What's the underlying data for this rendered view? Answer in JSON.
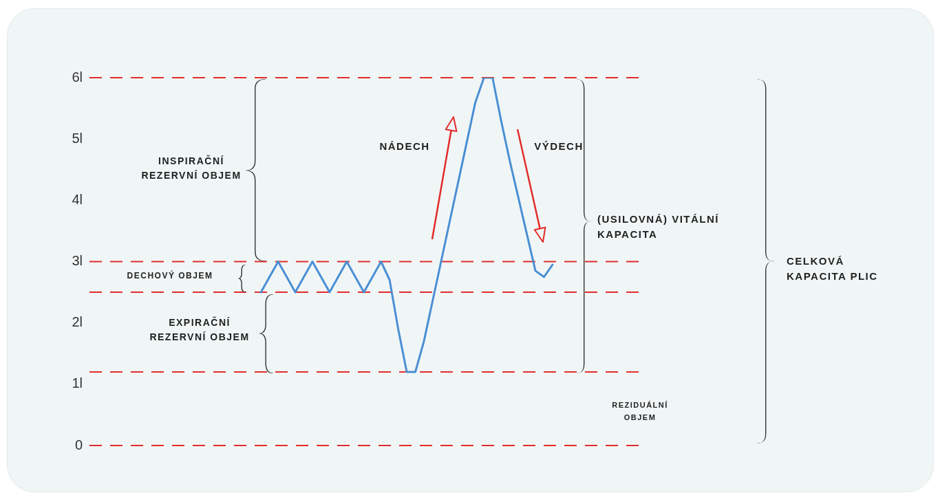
{
  "chart_data": {
    "type": "line",
    "categories": [
      null,
      null,
      null,
      null,
      null,
      null,
      null,
      null,
      null,
      null,
      null,
      null,
      null,
      null,
      null,
      null,
      null,
      null,
      null,
      null,
      null,
      null,
      null,
      null,
      null,
      null,
      null,
      null,
      null,
      null,
      null,
      null,
      null,
      null,
      null,
      null,
      null,
      null,
      null,
      null,
      null,
      null,
      null,
      null,
      null,
      null,
      null,
      null,
      null,
      null,
      null,
      null,
      null,
      null,
      null,
      null,
      null,
      null,
      null,
      null,
      null,
      null,
      null,
      null,
      null,
      null
    ],
    "series": [
      {
        "color": "#4a8fd4",
        "values": [
          null,
          null,
          null,
          null,
          null,
          null,
          null,
          null,
          null,
          null,
          null,
          null,
          null,
          null,
          null,
          null,
          null,
          null,
          null,
          null,
          2.5,
          2.75,
          3,
          2.75,
          2.5,
          2.75,
          3,
          2.75,
          2.5,
          2.75,
          3,
          2.75,
          2.5,
          2.75,
          3,
          2.7,
          1.9,
          1.2,
          1.2,
          1.7,
          2.35,
          3,
          3.65,
          4.3,
          4.95,
          5.6,
          6,
          6,
          5.3,
          4.65,
          4.05,
          3.45,
          2.85,
          2.75,
          2.95,
          null,
          null,
          null,
          null,
          null,
          null,
          null,
          null,
          null,
          null,
          null
        ]
      }
    ],
    "ylim": [
      0,
      6
    ],
    "yticks": [
      0,
      {
        "value": 1,
        "label": "1l"
      },
      {
        "value": 2,
        "label": "2l"
      },
      {
        "value": 3,
        "label": "3l"
      },
      {
        "value": 4,
        "label": "4l"
      },
      {
        "value": 5,
        "label": "5l"
      },
      {
        "value": 6,
        "label": "6l"
      }
    ],
    "tick_labels": "y",
    "grid": false,
    "legend": false,
    "marker": "none",
    "line_style": "solid",
    "ref_lines": [
      {
        "axis": "y",
        "value": 6,
        "color": "#e32b2b",
        "line_style": "dashed"
      },
      {
        "axis": "y",
        "value": 3,
        "color": "#e32b2b",
        "line_style": "dashed"
      },
      {
        "axis": "y",
        "value": 2.5,
        "color": "#e32b2b",
        "line_style": "dashed"
      },
      {
        "axis": "y",
        "value": 1.2,
        "color": "#e32b2b",
        "line_style": "dashed"
      },
      {
        "axis": "y",
        "value": 0,
        "color": "#e32b2b",
        "line_style": "dashed"
      }
    ],
    "annotations": [
      "INSPIRAČNÍ\nREZERVNÍ OBJEM",
      "DECHOVÝ OBJEM",
      "EXPIRAČNÍ\nREZERVNÍ OBJEM",
      "NÁDECH",
      "VÝDECH",
      "(USILOVNÁ) VITÁLNÍ\nKAPACITA",
      "CELKOVÁ\nKAPACITA PLIC",
      "REZIDUÁLNÍ\nOBJEM"
    ]
  }
}
